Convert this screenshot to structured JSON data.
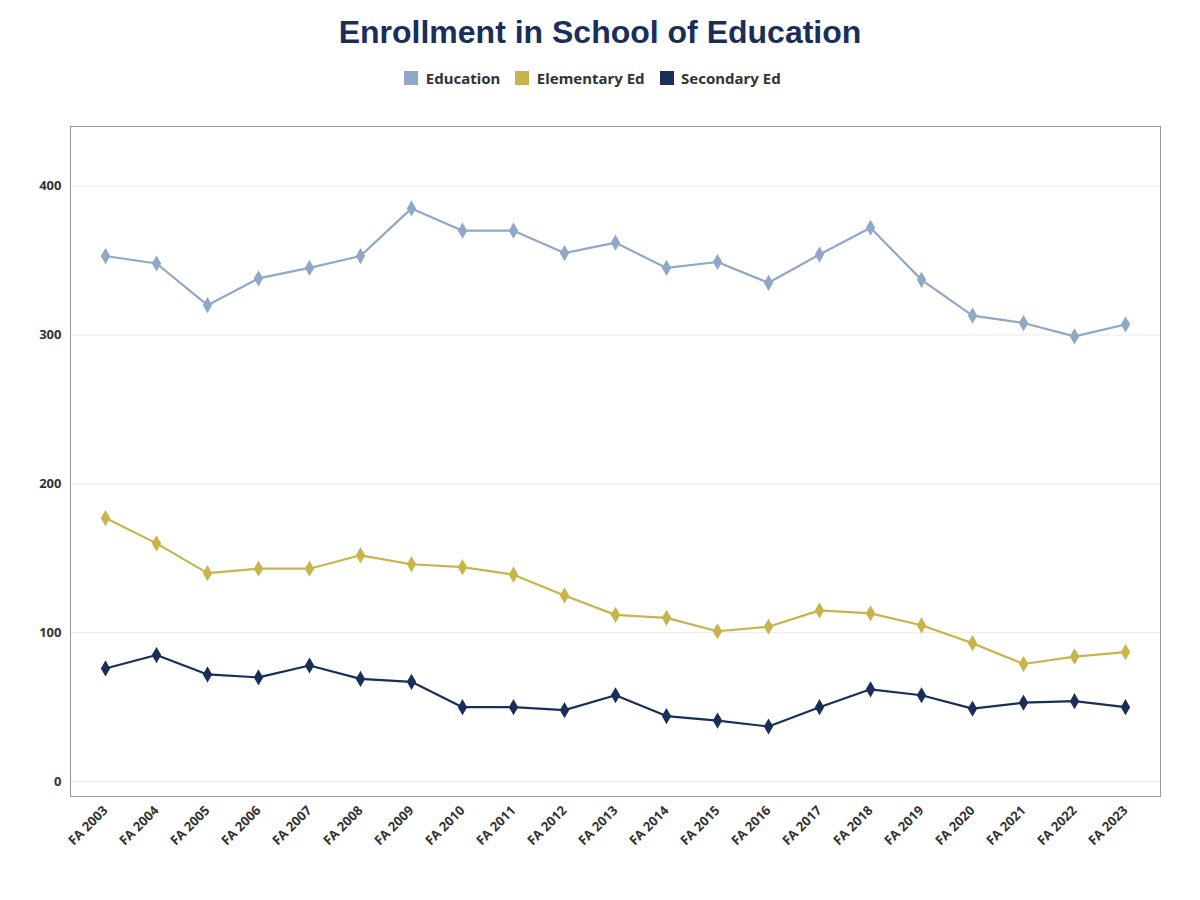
{
  "chart_data": {
    "type": "line",
    "title": "Enrollment in School of Education",
    "categories": [
      "FA 2003",
      "FA 2004",
      "FA 2005",
      "FA 2006",
      "FA 2007",
      "FA 2008",
      "FA 2009",
      "FA 2010",
      "FA 2011",
      "FA 2012",
      "FA 2013",
      "FA 2014",
      "FA 2015",
      "FA 2016",
      "FA 2017",
      "FA 2018",
      "FA 2019",
      "FA 2020",
      "FA 2021",
      "FA 2022",
      "FA 2023"
    ],
    "series": [
      {
        "name": "Education",
        "color": "#8fa8c8",
        "values": [
          353,
          348,
          320,
          338,
          345,
          353,
          385,
          370,
          370,
          355,
          362,
          345,
          349,
          335,
          354,
          372,
          337,
          313,
          308,
          299,
          307
        ]
      },
      {
        "name": "Elementary Ed",
        "color": "#c8b44a",
        "values": [
          177,
          160,
          140,
          143,
          143,
          152,
          146,
          144,
          139,
          125,
          112,
          110,
          101,
          104,
          115,
          113,
          105,
          93,
          79,
          84,
          87
        ]
      },
      {
        "name": "Secondary Ed",
        "color": "#1a2e5a",
        "values": [
          76,
          85,
          72,
          70,
          78,
          69,
          67,
          50,
          50,
          48,
          58,
          44,
          41,
          37,
          50,
          62,
          58,
          49,
          53,
          54,
          50
        ]
      }
    ],
    "ylim": [
      -10,
      440
    ],
    "yticks": [
      0,
      100,
      200,
      300,
      400
    ],
    "grid": true,
    "legend": "top",
    "marker": "diamond"
  }
}
